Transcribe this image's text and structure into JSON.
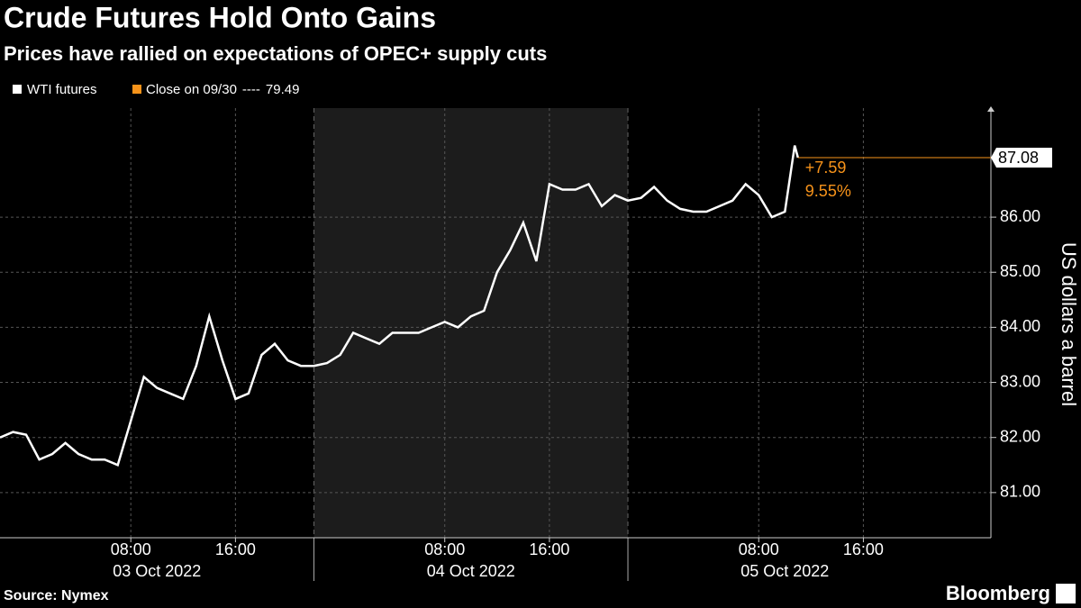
{
  "chart_data": {
    "type": "line",
    "title": "Crude Futures Hold Onto Gains",
    "subtitle": "Prices have rallied on expectations of OPEC+ supply cuts",
    "y_label": "US dollars a barrel",
    "source": "Source: Nymex",
    "brand": "Bloomberg",
    "x": [
      "2022-10-02 22:00",
      "2022-10-02 23:00",
      "2022-10-03 00:00",
      "2022-10-03 01:00",
      "2022-10-03 02:00",
      "2022-10-03 03:00",
      "2022-10-03 04:00",
      "2022-10-03 05:00",
      "2022-10-03 06:00",
      "2022-10-03 07:00",
      "2022-10-03 08:00",
      "2022-10-03 09:00",
      "2022-10-03 10:00",
      "2022-10-03 11:00",
      "2022-10-03 12:00",
      "2022-10-03 13:00",
      "2022-10-03 14:00",
      "2022-10-03 15:00",
      "2022-10-03 16:00",
      "2022-10-03 17:00",
      "2022-10-03 18:00",
      "2022-10-03 19:00",
      "2022-10-03 20:00",
      "2022-10-03 21:00",
      "2022-10-03 22:00",
      "2022-10-03 23:00",
      "2022-10-04 00:00",
      "2022-10-04 01:00",
      "2022-10-04 02:00",
      "2022-10-04 03:00",
      "2022-10-04 04:00",
      "2022-10-04 05:00",
      "2022-10-04 06:00",
      "2022-10-04 07:00",
      "2022-10-04 08:00",
      "2022-10-04 09:00",
      "2022-10-04 10:00",
      "2022-10-04 11:00",
      "2022-10-04 12:00",
      "2022-10-04 13:00",
      "2022-10-04 14:00",
      "2022-10-04 15:00",
      "2022-10-04 16:00",
      "2022-10-04 17:00",
      "2022-10-04 18:00",
      "2022-10-04 19:00",
      "2022-10-04 20:00",
      "2022-10-04 21:00",
      "2022-10-04 22:00",
      "2022-10-04 23:00",
      "2022-10-05 00:00",
      "2022-10-05 01:00",
      "2022-10-05 02:00",
      "2022-10-05 03:00",
      "2022-10-05 04:00",
      "2022-10-05 05:00",
      "2022-10-05 06:00",
      "2022-10-05 07:00",
      "2022-10-05 08:00",
      "2022-10-05 09:00",
      "2022-10-05 10:00",
      "2022-10-05 10:45",
      "2022-10-05 11:00"
    ],
    "series": [
      {
        "name": "WTI futures",
        "color": "#ffffff",
        "values": [
          82.0,
          82.1,
          82.05,
          81.6,
          81.7,
          81.9,
          81.7,
          81.6,
          81.6,
          81.5,
          82.3,
          83.1,
          82.9,
          82.8,
          82.7,
          83.3,
          84.2,
          83.4,
          82.7,
          82.8,
          83.5,
          83.7,
          83.4,
          83.3,
          83.3,
          83.35,
          83.5,
          83.9,
          83.8,
          83.7,
          83.9,
          83.9,
          83.9,
          84.0,
          84.1,
          84.0,
          84.2,
          84.3,
          85.0,
          85.4,
          85.9,
          85.2,
          86.6,
          86.5,
          86.5,
          86.6,
          86.2,
          86.4,
          86.3,
          86.35,
          86.55,
          86.3,
          86.15,
          86.1,
          86.1,
          86.2,
          86.3,
          86.6,
          86.4,
          86.0,
          86.1,
          87.3,
          87.08
        ]
      }
    ],
    "reference": {
      "name": "Close on 09/30",
      "separator": "----",
      "value": 79.49,
      "color": "#f7931a"
    },
    "change_label": "+7.59",
    "change": 7.59,
    "change_pct_label": "9.55%",
    "change_pct": 9.55,
    "xlim": [
      "2022-10-02 22:00",
      "2022-10-06 01:45"
    ],
    "xticks": [
      {
        "value": "2022-10-03 08:00",
        "label": "08:00"
      },
      {
        "value": "2022-10-03 16:00",
        "label": "16:00"
      },
      {
        "value": "2022-10-04 08:00",
        "label": "08:00"
      },
      {
        "value": "2022-10-04 16:00",
        "label": "16:00"
      },
      {
        "value": "2022-10-05 08:00",
        "label": "08:00"
      },
      {
        "value": "2022-10-05 16:00",
        "label": "16:00"
      }
    ],
    "date_labels": [
      {
        "value": "2022-10-03 10:00",
        "label": "03 Oct 2022"
      },
      {
        "value": "2022-10-04 10:00",
        "label": "04 Oct 2022"
      },
      {
        "value": "2022-10-05 10:00",
        "label": "05 Oct 2022"
      }
    ],
    "separators": [
      "2022-10-03 22:00",
      "2022-10-04 22:00"
    ],
    "shade": [
      "2022-10-03 22:00",
      "2022-10-04 22:00"
    ],
    "ylim": [
      80.18,
      87.98
    ],
    "yticks": [
      {
        "value": 81,
        "label": "81.00"
      },
      {
        "value": 82,
        "label": "82.00"
      },
      {
        "value": 83,
        "label": "83.00"
      },
      {
        "value": 84,
        "label": "84.00"
      },
      {
        "value": 85,
        "label": "85.00"
      },
      {
        "value": 86,
        "label": "86.00"
      }
    ],
    "grid": true
  }
}
